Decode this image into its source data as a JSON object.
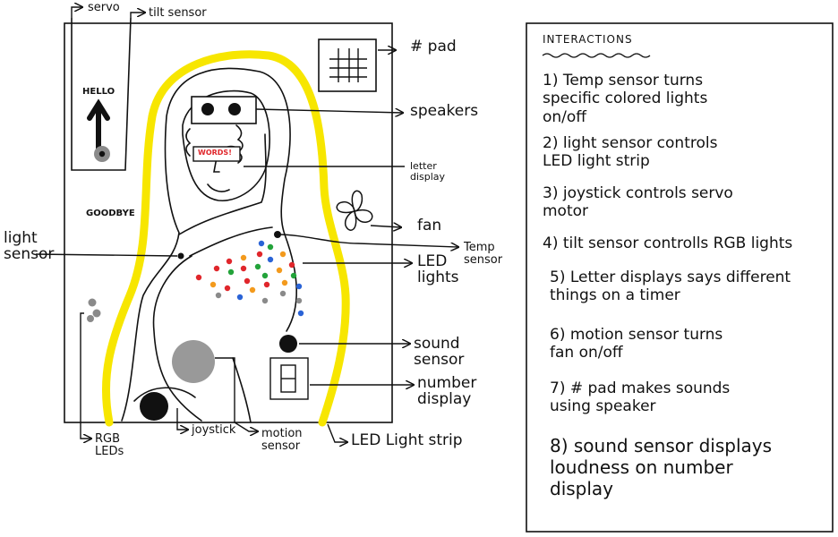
{
  "diagram": {
    "labels": {
      "servo": "servo",
      "tilt_sensor": "tilt sensor",
      "hash_pad": "# pad",
      "speakers": "speakers",
      "letter_display": "letter\ndisplay",
      "fan": "fan",
      "temp_sensor": "Temp\nsensor",
      "led_lights": "LED\nlights",
      "light_sensor": "light\nsensor",
      "sound_sensor": "sound\nsensor",
      "number_display": "number\ndisplay",
      "joystick": "joystick",
      "motion_sensor": "motion\nsensor",
      "rgb_leds": "RGB\nLEDs",
      "led_light_strip": "LED Light strip"
    },
    "board": {
      "hello": "HELLO",
      "goodbye": "GOODBYE",
      "words": "WORDS!"
    }
  },
  "panel": {
    "title": "INTERACTIONS",
    "items": [
      "1) Temp sensor turns\n   specific colored lights\n   on/off",
      "2) light sensor controls\n   LED light strip",
      "3) joystick controls servo\n   motor",
      "4) tilt sensor controlls RGB lights",
      "5) Letter displays says different\n   things on a timer",
      "6) motion sensor turns\n   fan on/off",
      "7) # pad makes sounds\n   using speaker",
      "8) sound sensor displays\n   loudness on number\n   display"
    ]
  },
  "colors": {
    "led_strip": "#f7e600",
    "led_red": "#e0262b",
    "led_green": "#23a33a",
    "led_blue": "#2a63d6",
    "led_orange": "#f39a1d",
    "led_gray": "#8a8a8a",
    "motion_sensor": "#999999"
  }
}
